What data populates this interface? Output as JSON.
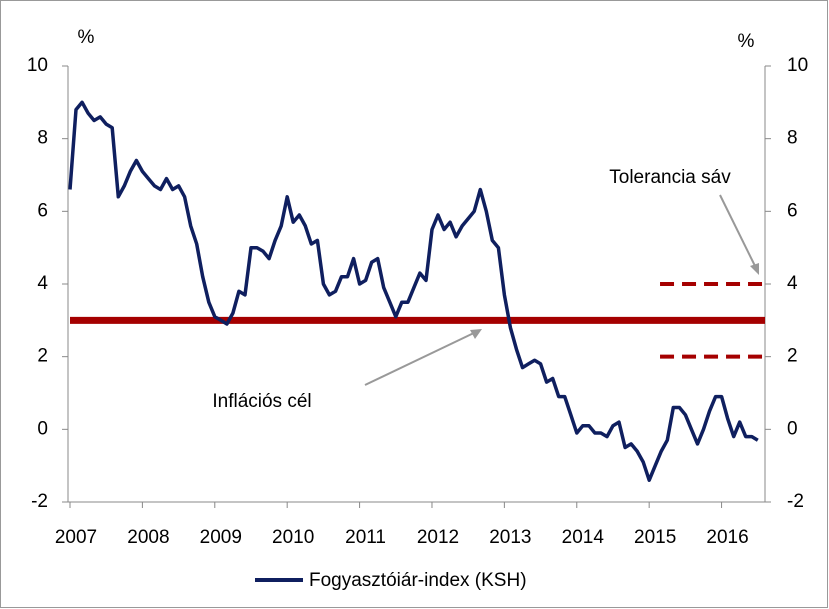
{
  "chart_data": {
    "type": "line",
    "y_unit": "%",
    "y2_unit": "%",
    "x": [
      2007.0,
      2007.083,
      2007.167,
      2007.25,
      2007.333,
      2007.417,
      2007.5,
      2007.583,
      2007.667,
      2007.75,
      2007.833,
      2007.917,
      2008.0,
      2008.083,
      2008.167,
      2008.25,
      2008.333,
      2008.417,
      2008.5,
      2008.583,
      2008.667,
      2008.75,
      2008.833,
      2008.917,
      2009.0,
      2009.083,
      2009.167,
      2009.25,
      2009.333,
      2009.417,
      2009.5,
      2009.583,
      2009.667,
      2009.75,
      2009.833,
      2009.917,
      2010.0,
      2010.083,
      2010.167,
      2010.25,
      2010.333,
      2010.417,
      2010.5,
      2010.583,
      2010.667,
      2010.75,
      2010.833,
      2010.917,
      2011.0,
      2011.083,
      2011.167,
      2011.25,
      2011.333,
      2011.417,
      2011.5,
      2011.583,
      2011.667,
      2011.75,
      2011.833,
      2011.917,
      2012.0,
      2012.083,
      2012.167,
      2012.25,
      2012.333,
      2012.417,
      2012.5,
      2012.583,
      2012.667,
      2012.75,
      2012.833,
      2012.917,
      2013.0,
      2013.083,
      2013.167,
      2013.25,
      2013.333,
      2013.417,
      2013.5,
      2013.583,
      2013.667,
      2013.75,
      2013.833,
      2013.917,
      2014.0,
      2014.083,
      2014.167,
      2014.25,
      2014.333,
      2014.417,
      2014.5,
      2014.583,
      2014.667,
      2014.75,
      2014.833,
      2014.917,
      2015.0,
      2015.083,
      2015.167,
      2015.25,
      2015.333,
      2015.417,
      2015.5,
      2015.583,
      2015.667,
      2015.75,
      2015.833,
      2015.917,
      2016.0,
      2016.083,
      2016.167,
      2016.25,
      2016.333,
      2016.417,
      2016.5
    ],
    "series": [
      {
        "name": "Fogyasztóiár-index (KSH)",
        "color": "#0f1f5f",
        "values": [
          6.6,
          8.8,
          9.0,
          8.7,
          8.5,
          8.6,
          8.4,
          8.3,
          6.4,
          6.7,
          7.1,
          7.4,
          7.1,
          6.9,
          6.7,
          6.6,
          6.9,
          6.6,
          6.7,
          6.4,
          5.6,
          5.1,
          4.2,
          3.5,
          3.1,
          3.0,
          2.9,
          3.2,
          3.8,
          3.7,
          5.0,
          5.0,
          4.9,
          4.7,
          5.2,
          5.6,
          6.4,
          5.7,
          5.9,
          5.6,
          5.1,
          5.2,
          4.0,
          3.7,
          3.8,
          4.2,
          4.2,
          4.7,
          4.0,
          4.1,
          4.6,
          4.7,
          3.9,
          3.5,
          3.1,
          3.5,
          3.5,
          3.9,
          4.3,
          4.1,
          5.5,
          5.9,
          5.5,
          5.7,
          5.3,
          5.6,
          5.8,
          6.0,
          6.6,
          6.0,
          5.2,
          5.0,
          3.7,
          2.8,
          2.2,
          1.7,
          1.8,
          1.9,
          1.8,
          1.3,
          1.4,
          0.9,
          0.9,
          0.4,
          -0.1,
          0.1,
          0.1,
          -0.1,
          -0.1,
          -0.2,
          0.1,
          0.2,
          -0.5,
          -0.4,
          -0.6,
          -0.9,
          -1.4,
          -1.0,
          -0.6,
          -0.3,
          0.6,
          0.6,
          0.4,
          0.0,
          -0.4,
          0.0,
          0.5,
          0.9,
          0.9,
          0.3,
          -0.2,
          0.2,
          -0.2,
          -0.2,
          -0.3
        ]
      }
    ],
    "target": {
      "value": 3,
      "x": [
        2007.0,
        2016.6
      ],
      "color": "#a50000"
    },
    "tolerance_band": {
      "values": [
        4,
        2
      ],
      "x": [
        2015.15,
        2016.6
      ],
      "color": "#a50000"
    },
    "annotations": [
      {
        "text": "Inflációs cél"
      },
      {
        "text": "Tolerancia sáv"
      }
    ],
    "xlim": [
      2007.0,
      2016.6
    ],
    "xticks": [
      2007,
      2008,
      2009,
      2010,
      2011,
      2012,
      2013,
      2014,
      2015,
      2016
    ],
    "ylim": [
      -2,
      10
    ],
    "yticks": [
      -2,
      0,
      2,
      4,
      6,
      8,
      10
    ],
    "y2lim": [
      -2,
      10
    ],
    "y2ticks": [
      -2,
      0,
      2,
      4,
      6,
      8,
      10
    ],
    "legend": "bottom",
    "grid": false
  }
}
